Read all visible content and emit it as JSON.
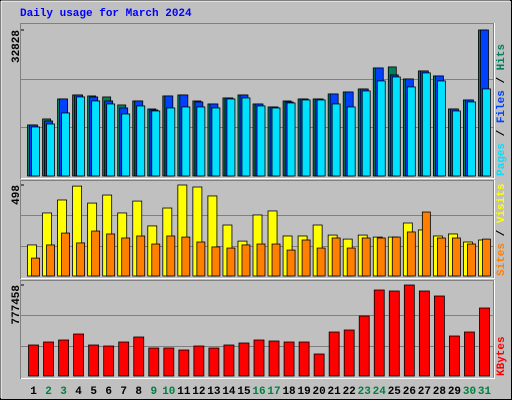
{
  "chart_data": [
    {
      "type": "bar",
      "title": "Daily usage for March 2024",
      "categories": [
        "1",
        "2",
        "3",
        "4",
        "5",
        "6",
        "7",
        "8",
        "9",
        "10",
        "11",
        "12",
        "13",
        "14",
        "15",
        "16",
        "17",
        "18",
        "19",
        "20",
        "21",
        "22",
        "23",
        "24",
        "25",
        "26",
        "27",
        "28",
        "29",
        "30",
        "31"
      ],
      "ylim": [
        0,
        32828
      ],
      "yticks": [
        32828
      ],
      "legend_separator": " / ",
      "series": [
        {
          "name": "Hits",
          "color": "#00805c",
          "values": [
            11475,
            12825,
            17325,
            18225,
            18000,
            17775,
            15975,
            16875,
            15075,
            18000,
            18225,
            16875,
            16200,
            17550,
            18225,
            16200,
            15525,
            16875,
            17325,
            17325,
            18450,
            18900,
            19575,
            24300,
            24525,
            21825,
            23625,
            22500,
            15075,
            17100,
            32828
          ]
        },
        {
          "name": "Files",
          "color": "#0040ff",
          "values": [
            11475,
            12375,
            17325,
            18225,
            17775,
            16875,
            15300,
            16875,
            14850,
            18000,
            18225,
            16650,
            16200,
            17550,
            18225,
            16200,
            15525,
            16650,
            17325,
            17325,
            18450,
            18900,
            19575,
            24300,
            22725,
            21825,
            23625,
            22500,
            15075,
            17100,
            32828
          ]
        },
        {
          "name": "Pages",
          "color": "#00e0ff",
          "values": [
            11025,
            11700,
            14175,
            17775,
            16875,
            16200,
            13950,
            15750,
            14625,
            15300,
            15525,
            15525,
            15300,
            17325,
            17550,
            15750,
            15300,
            16425,
            17100,
            17100,
            16200,
            15525,
            19125,
            21375,
            22275,
            20025,
            23175,
            21375,
            14625,
            16650,
            19575
          ]
        }
      ]
    },
    {
      "type": "bar",
      "ylim": [
        0,
        498
      ],
      "yticks": [
        498
      ],
      "legend_separator": " / ",
      "series": [
        {
          "name": "Visits",
          "color": "#ffff00",
          "values": [
            170,
            345,
            416,
            492,
            399,
            443,
            345,
            410,
            274,
            372,
            498,
            487,
            438,
            279,
            191,
            334,
            356,
            219,
            219,
            279,
            224,
            202,
            224,
            213,
            213,
            290,
            252,
            219,
            230,
            186,
            197
          ]
        },
        {
          "name": "Sites",
          "color": "#ff8000",
          "values": [
            98,
            170,
            235,
            181,
            246,
            230,
            208,
            219,
            175,
            219,
            213,
            186,
            159,
            153,
            170,
            175,
            175,
            142,
            197,
            153,
            208,
            153,
            208,
            208,
            213,
            241,
            350,
            208,
            208,
            175,
            202
          ]
        }
      ]
    },
    {
      "type": "bar",
      "ylim": [
        0,
        777458
      ],
      "yticks": [
        777458
      ],
      "categories": [
        "1",
        "2",
        "3",
        "4",
        "5",
        "6",
        "7",
        "8",
        "9",
        "10",
        "11",
        "12",
        "13",
        "14",
        "15",
        "16",
        "17",
        "18",
        "19",
        "20",
        "21",
        "22",
        "23",
        "24",
        "25",
        "26",
        "27",
        "28",
        "29",
        "30",
        "31"
      ],
      "category_colors": [
        "#000000",
        "#008040",
        "#008040",
        "#000000",
        "#000000",
        "#000000",
        "#000000",
        "#000000",
        "#008040",
        "#008040",
        "#000000",
        "#000000",
        "#000000",
        "#000000",
        "#000000",
        "#008040",
        "#008040",
        "#000000",
        "#000000",
        "#000000",
        "#000000",
        "#000000",
        "#008040",
        "#008040",
        "#000000",
        "#000000",
        "#000000",
        "#000000",
        "#000000",
        "#008040",
        "#008040"
      ],
      "series": [
        {
          "name": "KBytes",
          "color": "#ff0000",
          "values": [
            264833,
            290462,
            307548,
            358806,
            264833,
            256290,
            290462,
            333177,
            239204,
            239204,
            222118,
            256290,
            239204,
            264833,
            281919,
            307548,
            299005,
            290462,
            290462,
            187946,
            375892,
            392978,
            512580,
            734698,
            726155,
            777458,
            726155,
            683440,
            341720,
            375892,
            580924
          ]
        }
      ]
    }
  ]
}
